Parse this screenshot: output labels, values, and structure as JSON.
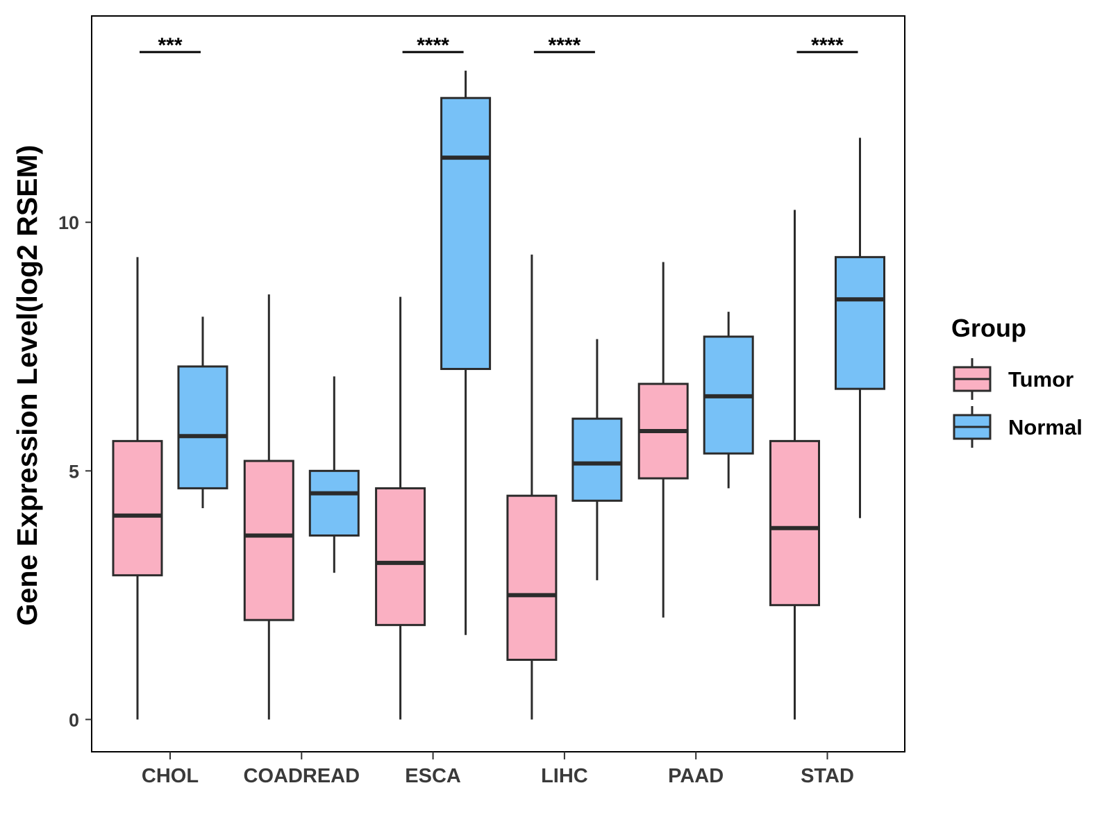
{
  "chart_data": {
    "type": "boxplot",
    "title": "",
    "xlabel": "",
    "ylabel": "Gene Expression Level(log2 RSEM)",
    "ylim": [
      -0.65,
      14.15
    ],
    "yticks": [
      0,
      5,
      10
    ],
    "ytick_labels": [
      "0",
      "5",
      "10"
    ],
    "grid": false,
    "legend": {
      "title": "Group",
      "position": "right",
      "entries": [
        {
          "label": "Tumor",
          "color": "#FAB0C2"
        },
        {
          "label": "Normal",
          "color": "#77C1F7"
        }
      ]
    },
    "categories": [
      "CHOL",
      "COADREAD",
      "ESCA",
      "LIHC",
      "PAAD",
      "STAD"
    ],
    "series": [
      {
        "name": "Tumor",
        "color": "#FAB0C2",
        "boxes": [
          {
            "min": 0.0,
            "q1": 2.9,
            "median": 4.1,
            "q3": 5.6,
            "max": 9.3
          },
          {
            "min": 0.0,
            "q1": 2.0,
            "median": 3.7,
            "q3": 5.2,
            "max": 8.55
          },
          {
            "min": 0.0,
            "q1": 1.9,
            "median": 3.15,
            "q3": 4.65,
            "max": 8.5
          },
          {
            "min": 0.0,
            "q1": 1.2,
            "median": 2.5,
            "q3": 4.5,
            "max": 9.35
          },
          {
            "min": 2.05,
            "q1": 4.85,
            "median": 5.8,
            "q3": 6.75,
            "max": 9.2
          },
          {
            "min": 0.0,
            "q1": 2.3,
            "median": 3.85,
            "q3": 5.6,
            "max": 10.25
          }
        ]
      },
      {
        "name": "Normal",
        "color": "#77C1F7",
        "boxes": [
          {
            "min": 4.25,
            "q1": 4.65,
            "median": 5.7,
            "q3": 7.1,
            "max": 8.1
          },
          {
            "min": 2.95,
            "q1": 3.7,
            "median": 4.55,
            "q3": 5.0,
            "max": 6.9
          },
          {
            "min": 1.7,
            "q1": 7.05,
            "median": 11.3,
            "q3": 12.5,
            "max": 13.05
          },
          {
            "min": 2.8,
            "q1": 4.4,
            "median": 5.15,
            "q3": 6.05,
            "max": 7.65
          },
          {
            "min": 4.65,
            "q1": 5.35,
            "median": 6.5,
            "q3": 7.7,
            "max": 8.2
          },
          {
            "min": 4.05,
            "q1": 6.65,
            "median": 8.45,
            "q3": 9.3,
            "max": 11.7
          }
        ]
      }
    ],
    "significance": [
      {
        "category": "CHOL",
        "label": "***"
      },
      {
        "category": "ESCA",
        "label": "****"
      },
      {
        "category": "LIHC",
        "label": "****"
      },
      {
        "category": "STAD",
        "label": "****"
      }
    ]
  }
}
